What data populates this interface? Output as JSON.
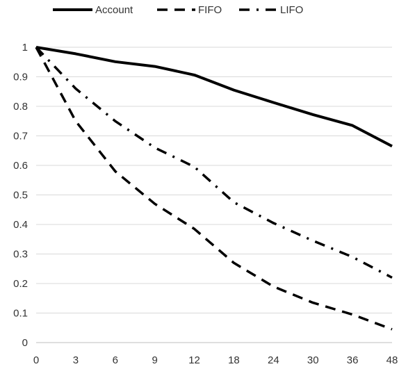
{
  "chart_data": {
    "type": "line",
    "x": [
      "0",
      "3",
      "6",
      "9",
      "12",
      "18",
      "24",
      "30",
      "36",
      "48"
    ],
    "ylim": [
      0,
      1
    ],
    "yticks": [
      "0",
      "0.1",
      "0.2",
      "0.3",
      "0.4",
      "0.5",
      "0.6",
      "0.7",
      "0.8",
      "0.9",
      "1"
    ],
    "grid": "horizontal",
    "legend_position": "top",
    "series": [
      {
        "name": "Account",
        "style": "solid",
        "color": "#000000",
        "values": [
          1.0,
          0.978,
          0.951,
          0.935,
          0.906,
          0.855,
          0.813,
          0.772,
          0.735,
          0.665
        ]
      },
      {
        "name": "FIFO",
        "style": "dashed",
        "color": "#000000",
        "values": [
          1.0,
          0.75,
          0.58,
          0.47,
          0.385,
          0.27,
          0.19,
          0.135,
          0.095,
          0.045
        ]
      },
      {
        "name": "LIFO",
        "style": "dashdot",
        "color": "#000000",
        "values": [
          1.0,
          0.86,
          0.75,
          0.66,
          0.595,
          0.475,
          0.405,
          0.345,
          0.29,
          0.22
        ]
      }
    ]
  }
}
